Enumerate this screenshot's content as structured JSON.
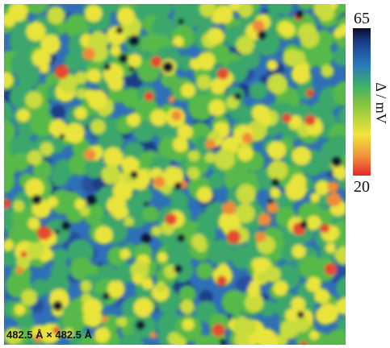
{
  "image": {
    "scale_label": "482.5 Å × 482.5 Å"
  },
  "colorbar": {
    "label": "Δ / mV",
    "range": [
      20,
      65
    ]
  }
}
